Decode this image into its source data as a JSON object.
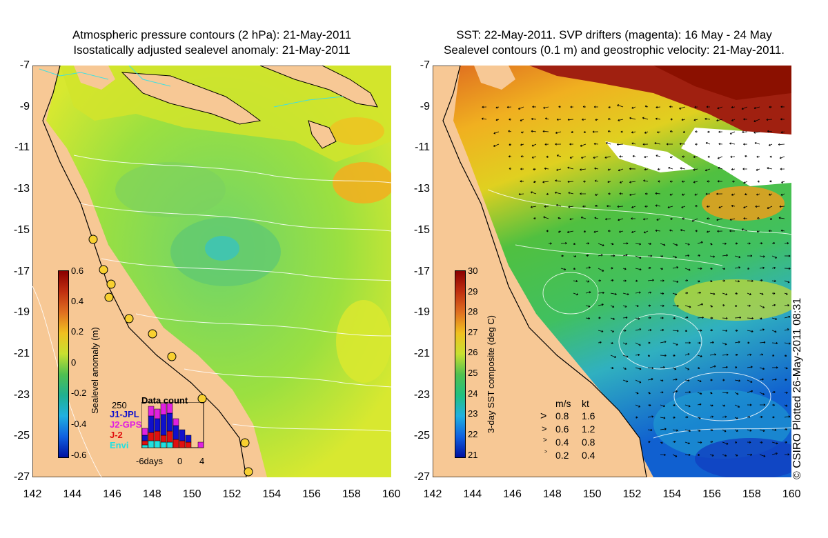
{
  "left_panel": {
    "title_line1": "Atmospheric pressure contours (2 hPa): 21-May-2011",
    "title_line2": "Isostatically adjusted sealevel anomaly: 21-May-2011",
    "y_ticks": [
      "-7",
      "-9",
      "-11",
      "-13",
      "-15",
      "-17",
      "-19",
      "-21",
      "-23",
      "-25",
      "-27"
    ],
    "x_ticks": [
      "142",
      "144",
      "146",
      "148",
      "150",
      "152",
      "154",
      "156",
      "158",
      "160"
    ],
    "colorbar": {
      "label": "Sealevel anomaly (m)",
      "ticks": [
        "0.6",
        "0.4",
        "0.2",
        "0",
        "-0.2",
        "-0.4",
        "-0.6"
      ]
    },
    "data_count": {
      "title": "Data count",
      "max_label": "250",
      "series": [
        {
          "name": "J1-JPL",
          "color": "#1010cc"
        },
        {
          "name": "J2-GPS",
          "color": "#e020e0"
        },
        {
          "name": "J-2",
          "color": "#e01010"
        },
        {
          "name": "Envi",
          "color": "#20e0e0"
        }
      ],
      "xaxis_label": "-6days",
      "x_ticks": [
        "0",
        "4"
      ]
    }
  },
  "right_panel": {
    "title_line1": "SST: 22-May-2011. SVP drifters (magenta): 16 May - 24 May",
    "title_line2": "Sealevel contours (0.1 m) and geostrophic velocity: 21-May-2011.",
    "y_ticks": [
      "-7",
      "-9",
      "-11",
      "-13",
      "-15",
      "-17",
      "-19",
      "-21",
      "-23",
      "-25",
      "-27"
    ],
    "x_ticks": [
      "142",
      "144",
      "146",
      "148",
      "150",
      "152",
      "154",
      "156",
      "158",
      "160"
    ],
    "colorbar": {
      "label": "3-day SST composite (deg C)",
      "ticks": [
        "30",
        "29",
        "28",
        "27",
        "26",
        "25",
        "24",
        "23",
        "22",
        "21"
      ]
    },
    "velocity_legend": {
      "unit_ms": "m/s",
      "unit_kt": "kt",
      "rows": [
        {
          "ms": "0.8",
          "kt": "1.6"
        },
        {
          "ms": "0.6",
          "kt": "1.2"
        },
        {
          "ms": "0.4",
          "kt": "0.8"
        },
        {
          "ms": "0.2",
          "kt": "0.4"
        }
      ]
    }
  },
  "copyright": "© CSIRO Plotted 26-May-2011 08:31"
}
